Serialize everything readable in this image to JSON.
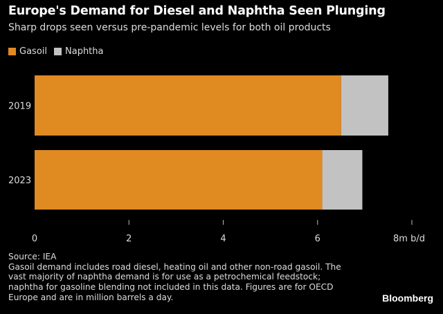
{
  "chart_data": {
    "type": "bar",
    "orientation": "horizontal",
    "stacked": true,
    "title": "Europe's Demand for Diesel and Naphtha Seen Plunging",
    "subtitle": "Sharp drops seen versus pre-pandemic levels for both oil products",
    "categories": [
      "2019",
      "2023"
    ],
    "series": [
      {
        "name": "Gasoil",
        "color": "#E08A22",
        "values": [
          6.5,
          6.1
        ]
      },
      {
        "name": "Naphtha",
        "color": "#C2C2C2",
        "values": [
          1.0,
          0.85
        ]
      }
    ],
    "xlim": [
      0,
      8
    ],
    "xticks": [
      "0",
      "2",
      "4",
      "6",
      "8m b/d"
    ],
    "xtick_values": [
      0,
      2,
      4,
      6,
      8
    ],
    "legend": "top-left",
    "grid": false
  },
  "footer": {
    "source": "Source: IEA",
    "note": "Gasoil demand includes road diesel, heating oil and other non-road gasoil. The vast majority of naphtha demand is for use as a petrochemical feedstock; naphtha for gasoline blending not included in this data. Figures are for OECD Europe and are in million barrels a day."
  },
  "brand": "Bloomberg"
}
